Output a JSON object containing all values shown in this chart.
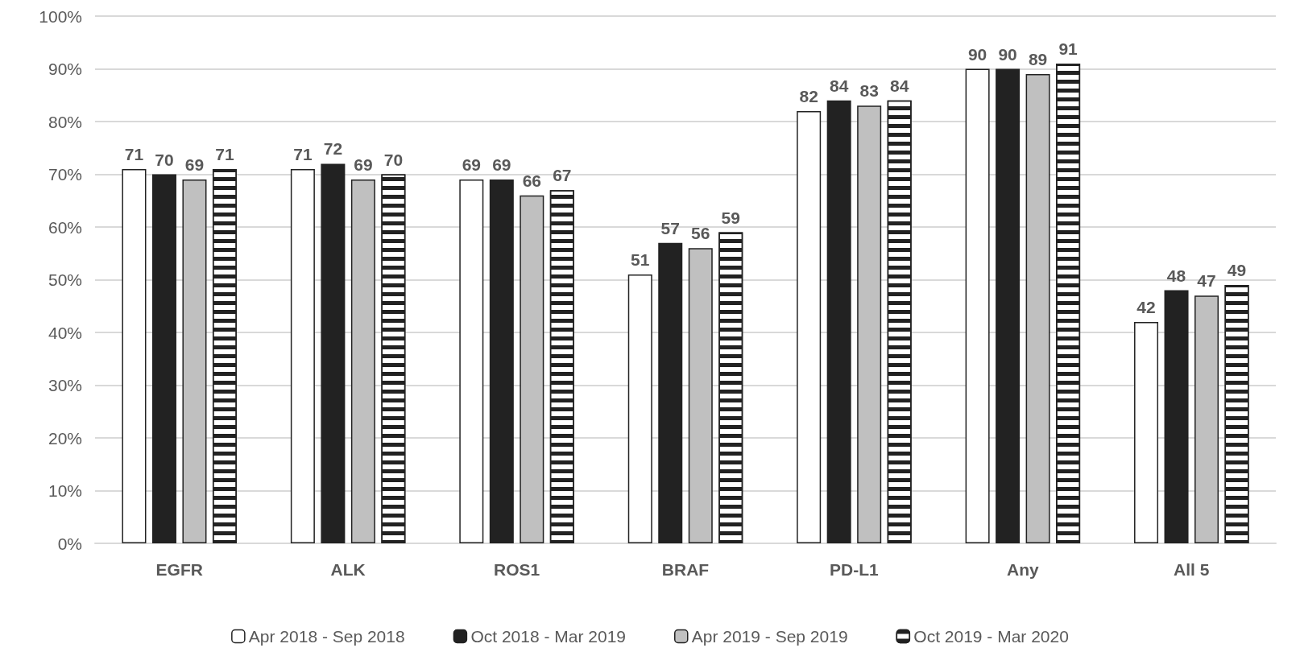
{
  "chart_data": {
    "type": "bar",
    "categories": [
      "EGFR",
      "ALK",
      "ROS1",
      "BRAF",
      "PD-L1",
      "Any",
      "All 5"
    ],
    "series": [
      {
        "name": "Apr 2018 - Sep 2018",
        "color": "#ffffff",
        "values": [
          71,
          71,
          69,
          51,
          82,
          90,
          42
        ]
      },
      {
        "name": "Oct 2018 - Mar 2019",
        "color": "#222222",
        "values": [
          70,
          72,
          69,
          57,
          84,
          90,
          48
        ]
      },
      {
        "name": "Apr 2019 - Sep 2019",
        "color": "#c0c0c0",
        "values": [
          69,
          69,
          66,
          56,
          83,
          89,
          47
        ]
      },
      {
        "name": "Oct 2019 - Mar 2020",
        "color": "#ffffff",
        "values": [
          71,
          70,
          67,
          59,
          84,
          91,
          49
        ]
      }
    ],
    "ylim": [
      0,
      100
    ],
    "yticks": [
      {
        "value": 0,
        "label": "0%"
      },
      {
        "value": 10,
        "label": "10%"
      },
      {
        "value": 20,
        "label": "20%"
      },
      {
        "value": 30,
        "label": "30%"
      },
      {
        "value": 40,
        "label": "40%"
      },
      {
        "value": 50,
        "label": "50%"
      },
      {
        "value": 60,
        "label": "60%"
      },
      {
        "value": 70,
        "label": "70%"
      },
      {
        "value": 80,
        "label": "80%"
      },
      {
        "value": 90,
        "label": "90%"
      },
      {
        "value": 100,
        "label": "100%"
      }
    ],
    "grid": "y",
    "legend": "bottom",
    "data_labels": true
  }
}
